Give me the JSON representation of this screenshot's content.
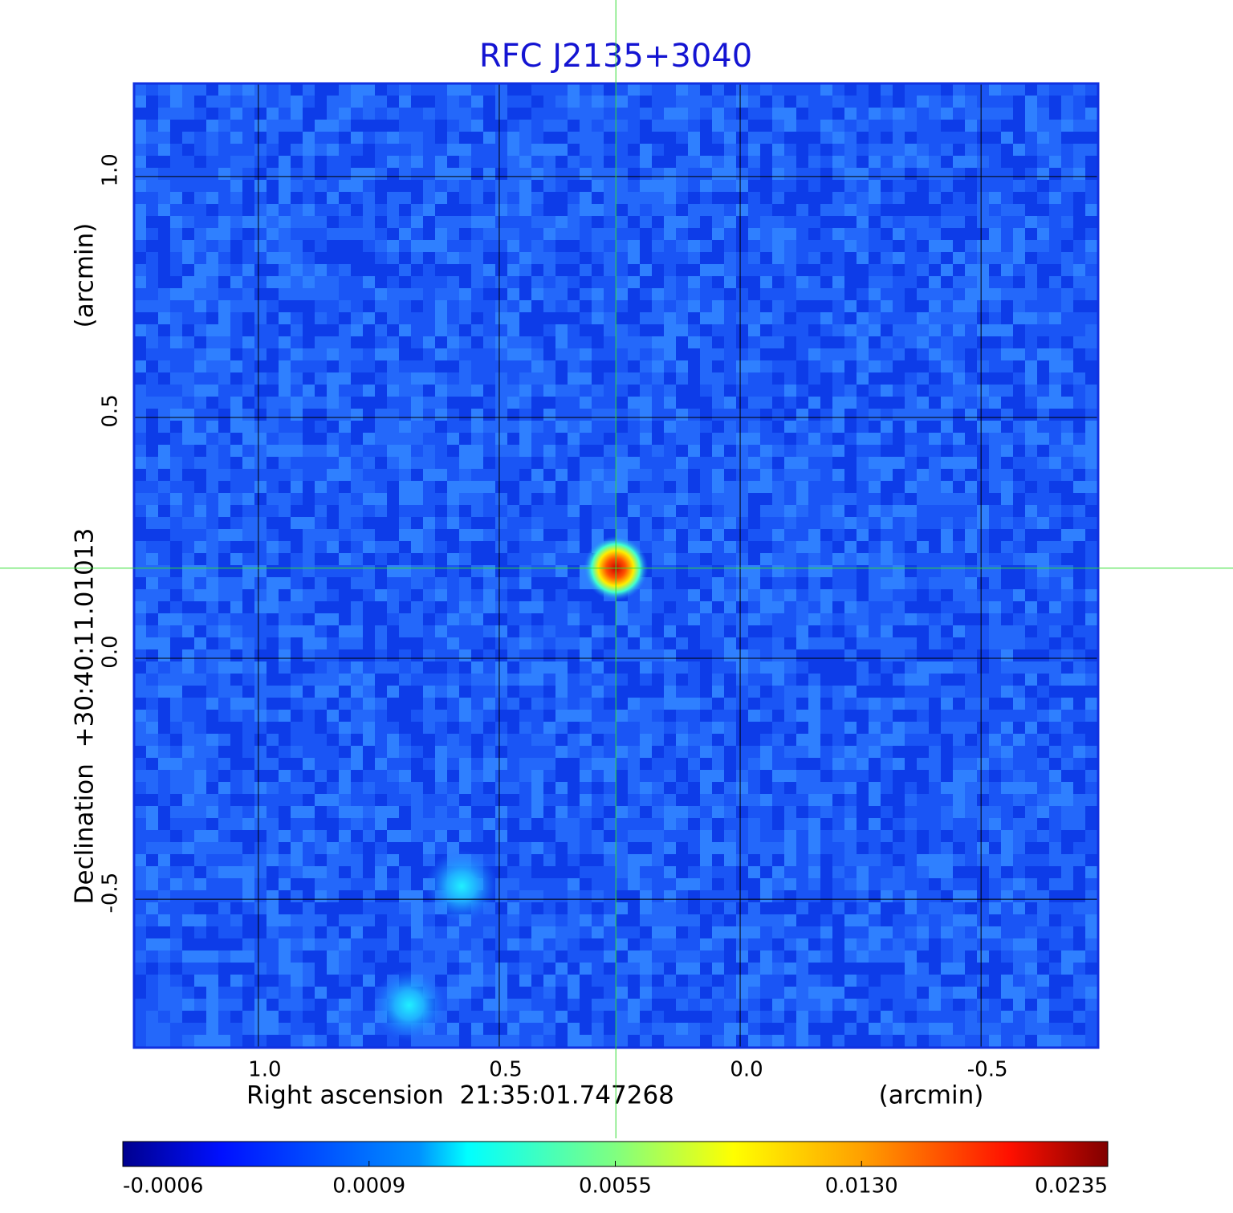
{
  "chart_data": {
    "type": "image",
    "title": "RFC J2135+3040",
    "x_label": "Right ascension  21:35:01.747268",
    "x_unit_label": "(arcmin)",
    "y_label": "Declination  +30:40:11.01013",
    "y_unit_label": "(arcmin)",
    "xlim": [
      1.258,
      -0.743
    ],
    "ylim": [
      -0.808,
      1.193
    ],
    "xticks": [
      {
        "value": 1,
        "label": "1.0"
      },
      0.5,
      {
        "value": 0,
        "label": "0.0"
      },
      -0.5
    ],
    "yticks": [
      {
        "value": 1,
        "label": "1.0"
      },
      0.5,
      {
        "value": 0,
        "label": "0.0"
      },
      -0.5
    ],
    "grid": true,
    "crosshair": {
      "x": 0.258,
      "y": 0.187,
      "color": "#33dd33"
    },
    "sources": {
      "x": [
        0.258,
        0.578,
        0.687
      ],
      "y": [
        0.187,
        -0.473,
        -0.72
      ],
      "values": [
        0.0235,
        0.0016,
        0.0018
      ]
    },
    "colorbar_ticks": [
      -0.0006,
      0.0009,
      0.0055,
      {
        "value": 0.013,
        "label": "0.0130"
      },
      0.0235
    ]
  }
}
